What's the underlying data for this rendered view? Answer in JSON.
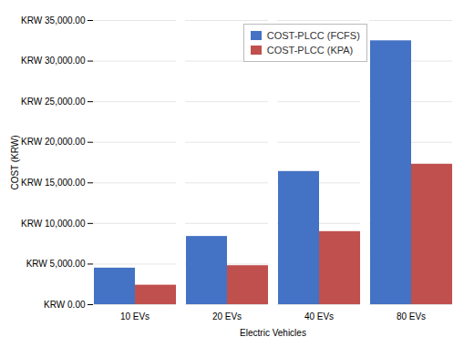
{
  "chart_data": {
    "type": "bar",
    "categories": [
      "10 EVs",
      "20 EVs",
      "40 EVs",
      "80 EVs"
    ],
    "series": [
      {
        "name": "COST-PLCC (FCFS)",
        "color": "#4472C4",
        "values": [
          4500,
          8400,
          16400,
          32500
        ]
      },
      {
        "name": "COST-PLCC (KPA)",
        "color": "#C0504D",
        "values": [
          2400,
          4800,
          9000,
          17300
        ]
      }
    ],
    "xlabel": "Electric Vehicles",
    "ylabel": "COST (KRW)",
    "ylim": [
      0,
      35000
    ],
    "yticks": [
      {
        "value": 0,
        "label": "KRW 0.00"
      },
      {
        "value": 5000,
        "label": "KRW 5,000.00"
      },
      {
        "value": 10000,
        "label": "KRW 10,000.00"
      },
      {
        "value": 15000,
        "label": "KRW 15,000.00"
      },
      {
        "value": 20000,
        "label": "KRW 20,000.00"
      },
      {
        "value": 25000,
        "label": "KRW 25,000.00"
      },
      {
        "value": 30000,
        "label": "KRW 30,000.00"
      },
      {
        "value": 35000,
        "label": "KRW 35,000.00"
      }
    ],
    "grid": true,
    "legend": "upper center"
  }
}
